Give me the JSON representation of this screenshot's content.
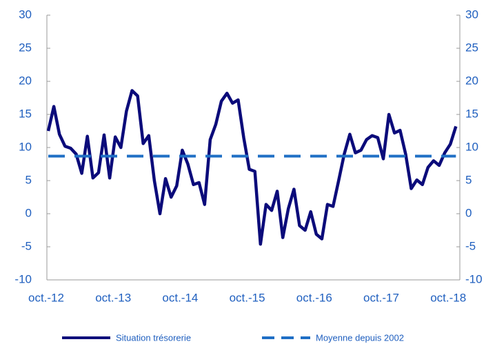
{
  "chart_data": {
    "type": "line",
    "categories": [
      "oct.-12",
      null,
      null,
      null,
      null,
      null,
      null,
      null,
      null,
      null,
      null,
      null,
      "oct.-13",
      null,
      null,
      null,
      null,
      null,
      null,
      null,
      null,
      null,
      null,
      null,
      "oct.-14",
      null,
      null,
      null,
      null,
      null,
      null,
      null,
      null,
      null,
      null,
      null,
      "oct.-15",
      null,
      null,
      null,
      null,
      null,
      null,
      null,
      null,
      null,
      null,
      null,
      "oct.-16",
      null,
      null,
      null,
      null,
      null,
      null,
      null,
      null,
      null,
      null,
      null,
      "oct.-17",
      null,
      null,
      null,
      null,
      null,
      null,
      null,
      null,
      null,
      null,
      null,
      "oct.-18",
      null
    ],
    "series": [
      {
        "name": "Situation trésorerie",
        "color": "#0b0b7a",
        "dashed": false,
        "values": [
          12.5,
          16.2,
          12,
          10.2,
          9.9,
          9,
          6.1,
          11.7,
          5.4,
          6.2,
          11.9,
          5.4,
          11.6,
          10,
          15.5,
          18.6,
          17.8,
          10.6,
          11.8,
          5,
          0,
          5.3,
          2.5,
          4.2,
          9.6,
          7.5,
          4.4,
          4.7,
          1.4,
          11.2,
          13.5,
          17,
          18.2,
          16.7,
          17.2,
          11.5,
          6.7,
          6.4,
          -4.6,
          1.4,
          0.5,
          3.4,
          -3.6,
          0.8,
          3.7,
          -1.8,
          -2.5,
          0.3,
          -3.1,
          -3.8,
          1.4,
          1.1,
          5,
          9,
          12,
          9.2,
          9.6,
          11.2,
          11.8,
          11.5,
          8.3,
          15,
          12.2,
          12.6,
          9,
          3.8,
          5.1,
          4.4,
          7,
          8,
          7.3,
          9.2,
          10.5,
          13.2
        ]
      },
      {
        "name": "Moyenne depuis 2002",
        "color": "#1f6fc5",
        "dashed": true,
        "values": [
          8.7,
          8.7,
          8.7,
          8.7,
          8.7,
          8.7,
          8.7,
          8.7,
          8.7,
          8.7,
          8.7,
          8.7,
          8.7,
          8.7,
          8.7,
          8.7,
          8.7,
          8.7,
          8.7,
          8.7,
          8.7,
          8.7,
          8.7,
          8.7,
          8.7,
          8.7,
          8.7,
          8.7,
          8.7,
          8.7,
          8.7,
          8.7,
          8.7,
          8.7,
          8.7,
          8.7,
          8.7,
          8.7,
          8.7,
          8.7,
          8.7,
          8.7,
          8.7,
          8.7,
          8.7,
          8.7,
          8.7,
          8.7,
          8.7,
          8.7,
          8.7,
          8.7,
          8.7,
          8.7,
          8.7,
          8.7,
          8.7,
          8.7,
          8.7,
          8.7,
          8.7,
          8.7,
          8.7,
          8.7,
          8.7,
          8.7,
          8.7,
          8.7,
          8.7,
          8.7,
          8.7,
          8.7,
          8.7,
          8.7
        ]
      }
    ],
    "ylim": [
      -10,
      30
    ],
    "yticks": [
      -10,
      -5,
      0,
      5,
      10,
      15,
      20,
      25,
      30
    ],
    "y2lim": [
      -10,
      30
    ],
    "y2ticks": [
      -10,
      -5,
      0,
      5,
      10,
      15,
      20,
      25,
      30
    ],
    "grid": false
  }
}
